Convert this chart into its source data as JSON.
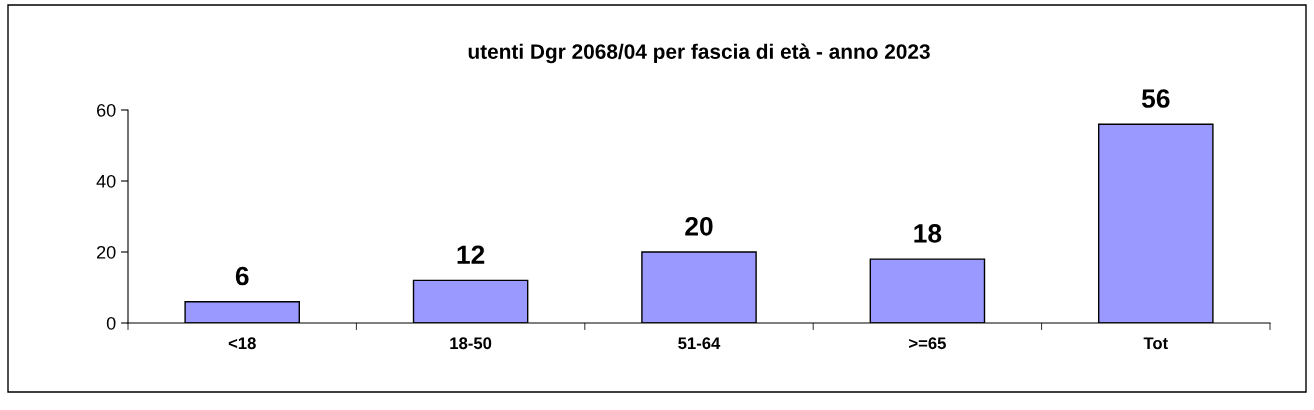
{
  "chart_data": {
    "type": "bar",
    "title": "utenti Dgr 2068/04 per fascia di età - anno 2023",
    "categories": [
      "<18",
      "18-50",
      "51-64",
      ">=65",
      "Tot"
    ],
    "values": [
      6,
      12,
      20,
      18,
      56
    ],
    "color": "#9999ff",
    "ylim": [
      0,
      60
    ],
    "yticks": [
      0,
      20,
      40,
      60
    ],
    "grid": false,
    "legend": false,
    "data_labels": true
  }
}
